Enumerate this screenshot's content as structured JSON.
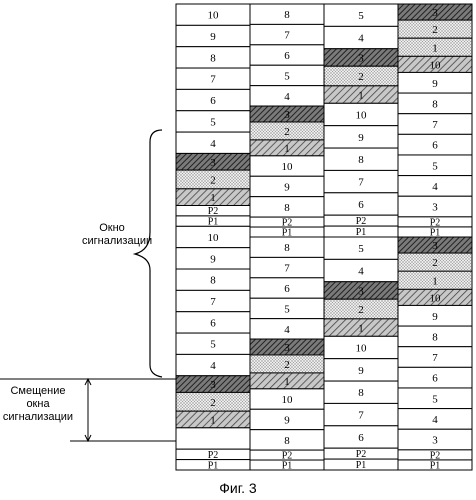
{
  "caption": "Фиг. 3",
  "labels": {
    "window": "Окно\nсигнализации",
    "offset": "Смещение\nокна\nсигнализации"
  },
  "columns": [
    {
      "name": "col-1",
      "cells": [
        {
          "text": "10",
          "kind": "plain"
        },
        {
          "text": "9",
          "kind": "plain"
        },
        {
          "text": "8",
          "kind": "plain"
        },
        {
          "text": "7",
          "kind": "plain"
        },
        {
          "text": "6",
          "kind": "plain"
        },
        {
          "text": "5",
          "kind": "plain"
        },
        {
          "text": "4",
          "kind": "plain"
        },
        {
          "text": "3",
          "kind": "hatch-dark"
        },
        {
          "text": "2",
          "kind": "dots"
        },
        {
          "text": "1",
          "kind": "hatch"
        },
        {
          "text": "P2",
          "kind": "p"
        },
        {
          "text": "P1",
          "kind": "p"
        },
        {
          "text": "10",
          "kind": "plain"
        },
        {
          "text": "9",
          "kind": "plain"
        },
        {
          "text": "8",
          "kind": "plain"
        },
        {
          "text": "7",
          "kind": "plain"
        },
        {
          "text": "6",
          "kind": "plain"
        },
        {
          "text": "5",
          "kind": "plain"
        },
        {
          "text": "4",
          "kind": "plain"
        },
        {
          "text": "3",
          "kind": "hatch-dark"
        },
        {
          "text": "2",
          "kind": "dots"
        },
        {
          "text": "1",
          "kind": "hatch"
        },
        {
          "text": "",
          "kind": "plain"
        },
        {
          "text": "P2",
          "kind": "p"
        },
        {
          "text": "P1",
          "kind": "p"
        }
      ]
    },
    {
      "name": "col-2",
      "cells": [
        {
          "text": "8",
          "kind": "plain"
        },
        {
          "text": "7",
          "kind": "plain"
        },
        {
          "text": "6",
          "kind": "plain"
        },
        {
          "text": "5",
          "kind": "plain"
        },
        {
          "text": "4",
          "kind": "plain"
        },
        {
          "text": "3",
          "kind": "hatch-dark"
        },
        {
          "text": "2",
          "kind": "dots"
        },
        {
          "text": "1",
          "kind": "hatch"
        },
        {
          "text": "10",
          "kind": "plain"
        },
        {
          "text": "9",
          "kind": "plain"
        },
        {
          "text": "8",
          "kind": "plain"
        },
        {
          "text": "P2",
          "kind": "p"
        },
        {
          "text": "P1",
          "kind": "p"
        },
        {
          "text": "8",
          "kind": "plain"
        },
        {
          "text": "7",
          "kind": "plain"
        },
        {
          "text": "6",
          "kind": "plain"
        },
        {
          "text": "5",
          "kind": "plain"
        },
        {
          "text": "4",
          "kind": "plain"
        },
        {
          "text": "3",
          "kind": "hatch-dark"
        },
        {
          "text": "2",
          "kind": "dots"
        },
        {
          "text": "1",
          "kind": "hatch"
        },
        {
          "text": "10",
          "kind": "plain"
        },
        {
          "text": "9",
          "kind": "plain"
        },
        {
          "text": "8",
          "kind": "plain"
        },
        {
          "text": "P2",
          "kind": "p"
        },
        {
          "text": "P1",
          "kind": "p"
        }
      ]
    },
    {
      "name": "col-3",
      "cells": [
        {
          "text": "5",
          "kind": "plain"
        },
        {
          "text": "4",
          "kind": "plain"
        },
        {
          "text": "3",
          "kind": "hatch-dark"
        },
        {
          "text": "2",
          "kind": "dots"
        },
        {
          "text": "1",
          "kind": "hatch"
        },
        {
          "text": "10",
          "kind": "plain"
        },
        {
          "text": "9",
          "kind": "plain"
        },
        {
          "text": "8",
          "kind": "plain"
        },
        {
          "text": "7",
          "kind": "plain"
        },
        {
          "text": "6",
          "kind": "plain"
        },
        {
          "text": "P2",
          "kind": "p"
        },
        {
          "text": "P1",
          "kind": "p"
        },
        {
          "text": "5",
          "kind": "plain"
        },
        {
          "text": "4",
          "kind": "plain"
        },
        {
          "text": "3",
          "kind": "hatch-dark"
        },
        {
          "text": "2",
          "kind": "dots"
        },
        {
          "text": "1",
          "kind": "hatch"
        },
        {
          "text": "10",
          "kind": "plain"
        },
        {
          "text": "9",
          "kind": "plain"
        },
        {
          "text": "8",
          "kind": "plain"
        },
        {
          "text": "7",
          "kind": "plain"
        },
        {
          "text": "6",
          "kind": "plain"
        },
        {
          "text": "P2",
          "kind": "p"
        },
        {
          "text": "P1",
          "kind": "p"
        }
      ]
    },
    {
      "name": "col-4",
      "cells": [
        {
          "text": "3",
          "kind": "hatch-dark"
        },
        {
          "text": "2",
          "kind": "dots"
        },
        {
          "text": "1",
          "kind": "dots"
        },
        {
          "text": "10",
          "kind": "hatch"
        },
        {
          "text": "9",
          "kind": "plain"
        },
        {
          "text": "8",
          "kind": "plain"
        },
        {
          "text": "7",
          "kind": "plain"
        },
        {
          "text": "6",
          "kind": "plain"
        },
        {
          "text": "5",
          "kind": "plain"
        },
        {
          "text": "4",
          "kind": "plain"
        },
        {
          "text": "3",
          "kind": "plain"
        },
        {
          "text": "P2",
          "kind": "p"
        },
        {
          "text": "P1",
          "kind": "p"
        },
        {
          "text": "3",
          "kind": "hatch-dark"
        },
        {
          "text": "2",
          "kind": "dots"
        },
        {
          "text": "1",
          "kind": "dots"
        },
        {
          "text": "10",
          "kind": "hatch"
        },
        {
          "text": "9",
          "kind": "plain"
        },
        {
          "text": "8",
          "kind": "plain"
        },
        {
          "text": "7",
          "kind": "plain"
        },
        {
          "text": "6",
          "kind": "plain"
        },
        {
          "text": "5",
          "kind": "plain"
        },
        {
          "text": "4",
          "kind": "plain"
        },
        {
          "text": "3",
          "kind": "plain"
        },
        {
          "text": "P2",
          "kind": "p"
        },
        {
          "text": "P1",
          "kind": "p"
        }
      ]
    }
  ]
}
